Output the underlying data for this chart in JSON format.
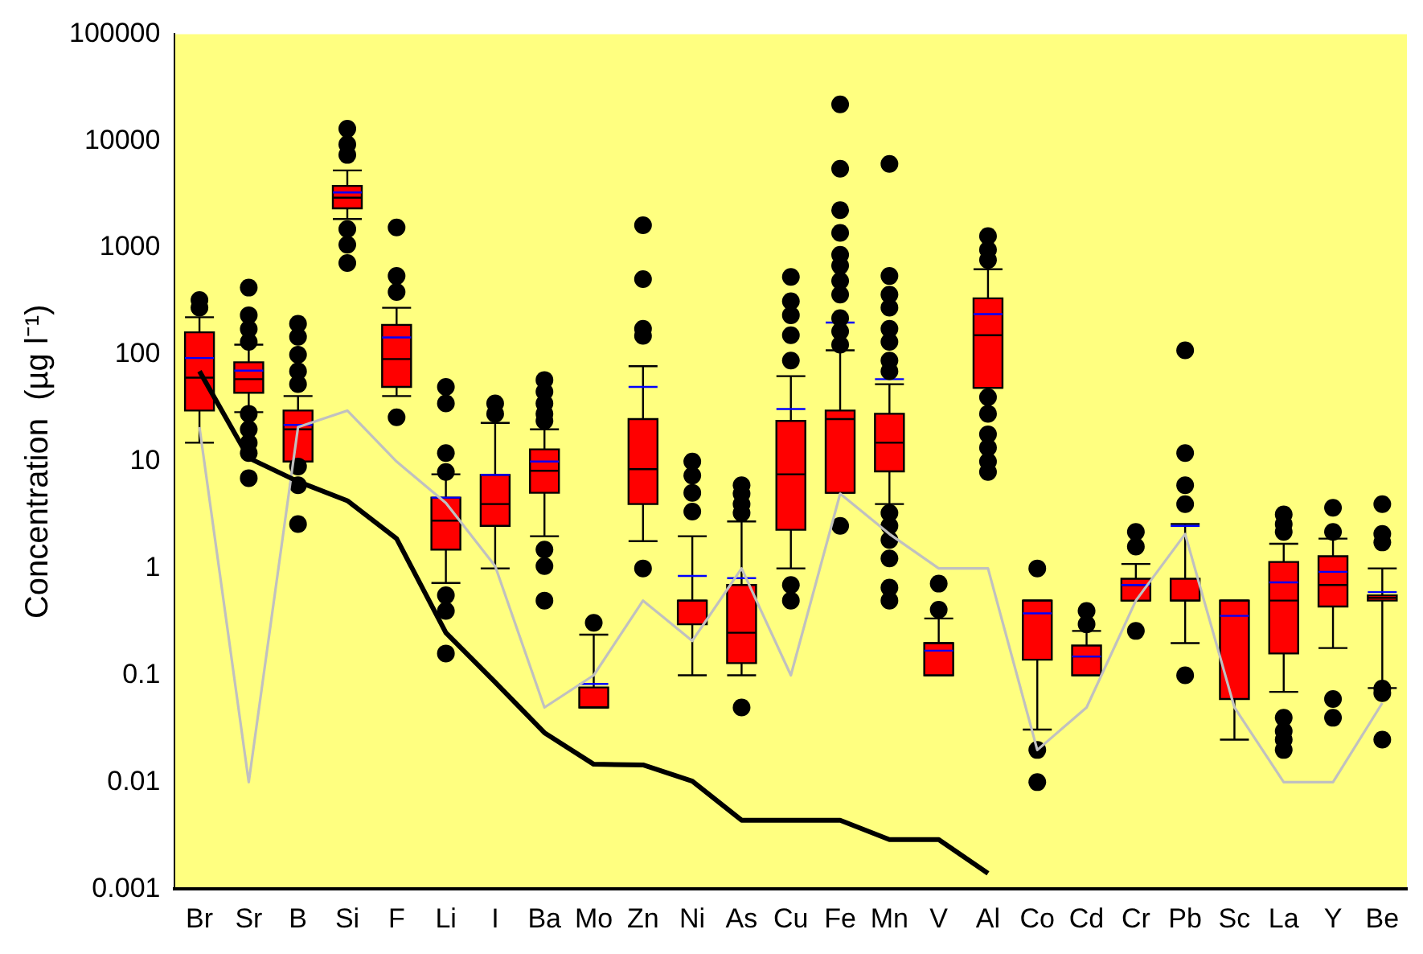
{
  "chart_data": {
    "type": "box",
    "ylabel": "Concentration  (µg l⁻¹)",
    "log": true,
    "ylim": [
      0.001,
      100000
    ],
    "yticks": [
      0.001,
      0.01,
      0.1,
      1,
      10,
      100,
      1000,
      10000,
      100000
    ],
    "grid": false,
    "legend": false,
    "marker": "none",
    "categories": [
      "Br",
      "Sr",
      "B",
      "Si",
      "F",
      "Li",
      "I",
      "Ba",
      "Mo",
      "Zn",
      "Ni",
      "As",
      "Cu",
      "Fe",
      "Mn",
      "V",
      "Al",
      "Co",
      "Cd",
      "Cr",
      "Pb",
      "Sc",
      "La",
      "Y",
      "Be"
    ],
    "series": [
      {
        "type": "box",
        "color": "#ff0000",
        "boxes": [
          {
            "low": 15,
            "q1": 30,
            "median": 61,
            "q3": 162,
            "high": 224,
            "mean": 93,
            "outliers": [
              324,
              275
            ]
          },
          {
            "low": 29,
            "q1": 44,
            "median": 59,
            "q3": 85,
            "high": 124,
            "mean": 71,
            "outliers": [
              424,
              234,
              174,
              132,
              28,
              20,
              15,
              12,
              7
            ]
          },
          {
            "low": 10,
            "q1": 10,
            "median": 20,
            "q3": 30,
            "high": 41,
            "mean": 22,
            "outliers": [
              195,
              147,
              100,
              70,
              53,
              9,
              6,
              2.6
            ]
          },
          {
            "low": 1860,
            "q1": 2340,
            "median": 2950,
            "q3": 3800,
            "high": 5300,
            "mean": 3300,
            "outliers": [
              13000,
              9300,
              7400,
              1500,
              1070,
              720
            ]
          },
          {
            "low": 41,
            "q1": 50,
            "median": 91,
            "q3": 190,
            "high": 275,
            "mean": 145,
            "outliers": [
              1550,
              545,
              386,
              26
            ]
          },
          {
            "low": 0.73,
            "q1": 1.5,
            "median": 2.8,
            "q3": 4.6,
            "high": 7.6,
            "mean": 4.6,
            "outliers": [
              50,
              35,
              12,
              8,
              0.56,
              0.4,
              0.16
            ]
          },
          {
            "low": 1,
            "q1": 2.5,
            "median": 4,
            "q3": 7.5,
            "high": 23,
            "mean": 7.5,
            "outliers": [
              35,
              28
            ]
          },
          {
            "low": 2,
            "q1": 5.1,
            "median": 8.2,
            "q3": 13,
            "high": 20,
            "mean": 10,
            "outliers": [
              58,
              45,
              35,
              28,
              24,
              1.5,
              1.05,
              0.5
            ]
          },
          {
            "low": 0.05,
            "q1": 0.05,
            "median": 0.05,
            "q3": 0.077,
            "high": 0.24,
            "mean": 0.083,
            "outliers": [
              0.31
            ]
          },
          {
            "low": 1.8,
            "q1": 4,
            "median": 8.5,
            "q3": 25,
            "high": 78,
            "mean": 50,
            "outliers": [
              1630,
              510,
              175,
              150,
              1
            ]
          },
          {
            "low": 0.1,
            "q1": 0.3,
            "median": 0.5,
            "q3": 0.5,
            "high": 2,
            "mean": 0.85,
            "outliers": [
              10,
              7.4,
              5.1,
              3.4
            ]
          },
          {
            "low": 0.1,
            "q1": 0.13,
            "median": 0.25,
            "q3": 0.7,
            "high": 2.75,
            "mean": 0.81,
            "outliers": [
              6,
              5,
              4,
              3.3,
              0.05
            ]
          },
          {
            "low": 1,
            "q1": 2.3,
            "median": 7.6,
            "q3": 24,
            "high": 63,
            "mean": 31,
            "outliers": [
              535,
              316,
              234,
              152,
              88,
              0.7,
              0.5
            ]
          },
          {
            "low": 5.1,
            "q1": 5.1,
            "median": 25,
            "q3": 30,
            "high": 110,
            "mean": 200,
            "outliers": [
              22000,
              5500,
              2250,
              1380,
              860,
              680,
              490,
              365,
              220,
              165,
              124,
              2.5
            ]
          },
          {
            "low": 4,
            "q1": 8.1,
            "median": 15,
            "q3": 28,
            "high": 53,
            "mean": 59,
            "outliers": [
              6100,
              545,
              365,
              275,
              175,
              132,
              88,
              70,
              3.3,
              2.5,
              1.85,
              1.24,
              0.66,
              0.5
            ]
          },
          {
            "low": 0.1,
            "q1": 0.1,
            "median": 0.2,
            "q3": 0.2,
            "high": 0.34,
            "mean": 0.17,
            "outliers": [
              0.72,
              0.41
            ]
          },
          {
            "low": 49,
            "q1": 49,
            "median": 152,
            "q3": 337,
            "high": 630,
            "mean": 240,
            "outliers": [
              1290,
              960,
              770,
              40,
              28,
              18,
              13.5,
              10,
              8
            ]
          },
          {
            "low": 0.031,
            "q1": 0.14,
            "median": 0.5,
            "q3": 0.5,
            "high": 0.5,
            "mean": 0.38,
            "outliers": [
              1,
              0.02,
              0.01
            ]
          },
          {
            "low": 0.1,
            "q1": 0.1,
            "median": 0.15,
            "q3": 0.19,
            "high": 0.26,
            "mean": 0.15,
            "outliers": [
              0.4,
              0.3
            ]
          },
          {
            "low": 0.5,
            "q1": 0.5,
            "median": 0.7,
            "q3": 0.8,
            "high": 1.1,
            "mean": 0.7,
            "outliers": [
              2.2,
              1.6,
              0.26
            ]
          },
          {
            "low": 0.2,
            "q1": 0.5,
            "median": 0.5,
            "q3": 0.8,
            "high": 2.6,
            "mean": 2.5,
            "outliers": [
              110,
              12,
              6,
              4,
              0.1
            ]
          },
          {
            "low": 0.025,
            "q1": 0.06,
            "median": 0.5,
            "q3": 0.5,
            "high": 0.5,
            "mean": 0.36
          },
          {
            "low": 0.07,
            "q1": 0.16,
            "median": 0.5,
            "q3": 1.15,
            "high": 1.7,
            "mean": 0.74,
            "outliers": [
              3.2,
              2.6,
              2.2,
              0.04,
              0.03,
              0.025,
              0.02
            ]
          },
          {
            "low": 0.18,
            "q1": 0.44,
            "median": 0.7,
            "q3": 1.3,
            "high": 1.9,
            "mean": 0.93,
            "outliers": [
              3.7,
              2.2,
              0.06,
              0.04
            ]
          },
          {
            "low": 0.076,
            "q1": 0.5,
            "median": 0.53,
            "q3": 0.56,
            "high": 1,
            "mean": 0.6,
            "outliers": [
              4,
              2.1,
              1.75,
              0.075,
              0.068,
              0.025
            ]
          }
        ]
      },
      {
        "type": "line",
        "color": "#000000",
        "values": [
          70,
          10.8,
          6.5,
          4.3,
          1.9,
          0.25,
          0.086,
          0.029,
          0.0147,
          0.0145,
          0.0102,
          0.0044,
          0.0044,
          0.0044,
          0.0029,
          0.0029,
          0.0014,
          null,
          null,
          null,
          null,
          null,
          null,
          null,
          null
        ]
      },
      {
        "type": "line",
        "color": "#c0c0c0",
        "values": [
          21,
          0.01,
          21,
          30,
          10,
          4.1,
          1.05,
          0.05,
          0.1,
          0.5,
          0.21,
          1,
          0.1,
          5,
          2.1,
          1,
          1,
          0.02,
          0.05,
          0.5,
          2.1,
          0.05,
          0.01,
          0.01,
          0.055
        ]
      }
    ]
  }
}
